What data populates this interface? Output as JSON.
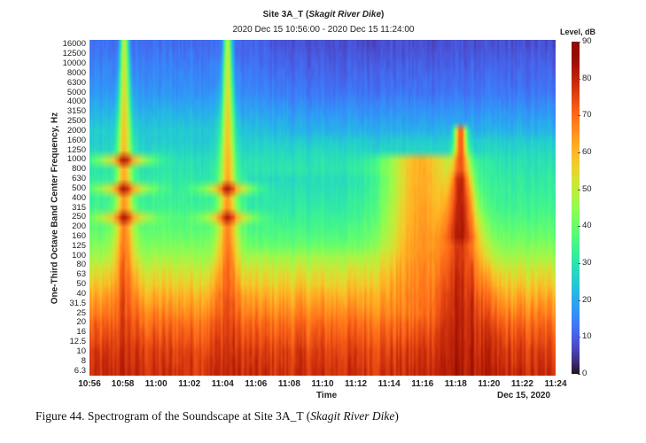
{
  "chart_data": {
    "type": "heatmap",
    "title": "Site 3A_T (Skagit River Dike)",
    "title_parts": {
      "prefix": "Site 3A_T (",
      "italic": "Skagit River Dike",
      "suffix": ")"
    },
    "subtitle": "2020 Dec 15 10:56:00 - 2020 Dec 15 11:24:00",
    "xlabel": "Time",
    "xdate_label": "Dec 15, 2020",
    "ylabel": "One-Third Octave Band Center Frequency, Hz",
    "x_ticks": [
      "10:56",
      "10:58",
      "11:00",
      "11:02",
      "11:04",
      "11:06",
      "11:08",
      "11:10",
      "11:12",
      "11:14",
      "11:16",
      "11:18",
      "11:20",
      "11:22",
      "11:24"
    ],
    "x_range_minutes": [
      0,
      28
    ],
    "y_ticks_hz": [
      "6.3",
      "8",
      "10",
      "12.5",
      "16",
      "20",
      "25",
      "31.5",
      "40",
      "50",
      "63",
      "80",
      "100",
      "125",
      "160",
      "200",
      "250",
      "315",
      "400",
      "500",
      "630",
      "800",
      "1000",
      "1250",
      "1600",
      "2000",
      "2500",
      "3150",
      "4000",
      "5000",
      "6300",
      "8000",
      "10000",
      "12500",
      "16000"
    ],
    "colorbar": {
      "title": "Level, dB",
      "ticks": [
        "0",
        "10",
        "20",
        "30",
        "40",
        "50",
        "60",
        "70",
        "80",
        "90"
      ],
      "range": [
        0,
        90
      ],
      "colormap": "turbo"
    },
    "baseline_level_db_by_band": [
      78,
      77,
      76,
      74,
      72,
      70,
      67,
      64,
      61,
      57,
      54,
      50,
      46,
      43,
      40,
      38,
      36,
      34,
      33,
      32,
      31,
      30,
      29,
      27,
      25,
      24,
      22,
      20,
      18,
      16,
      15,
      14,
      13,
      12,
      11
    ],
    "events": [
      {
        "name": "pass-by-1",
        "center_min": 2.1,
        "half_width_min": 0.35,
        "peak_db": 80,
        "band_range": [
          0,
          34
        ],
        "tonal_bands": [
          16,
          19,
          22
        ],
        "tonal_db": 82,
        "tonal_spread_min": 2.8
      },
      {
        "name": "pass-by-2",
        "center_min": 8.3,
        "half_width_min": 0.35,
        "peak_db": 80,
        "band_range": [
          0,
          34
        ],
        "tonal_bands": [
          16,
          19
        ],
        "tonal_db": 82,
        "tonal_spread_min": 2.6
      },
      {
        "name": "broadband-event-1",
        "center_min": 20.0,
        "half_width_min": 1.6,
        "peak_db": 70,
        "band_range": [
          0,
          22
        ]
      },
      {
        "name": "broadband-event-2",
        "center_min": 22.3,
        "half_width_min": 1.0,
        "peak_db": 82,
        "band_range": [
          0,
          25
        ],
        "peak_bands": [
          14,
          20
        ]
      }
    ],
    "quiet_period_min": [
      9.5,
      19.0
    ],
    "loud_high_freq_period_min": [
      0,
      7
    ]
  },
  "caption": {
    "prefix": "Figure 44. Spectrogram of the Soundscape at Site 3A_T (",
    "italic": "Skagit River Dike",
    "suffix": ")"
  }
}
